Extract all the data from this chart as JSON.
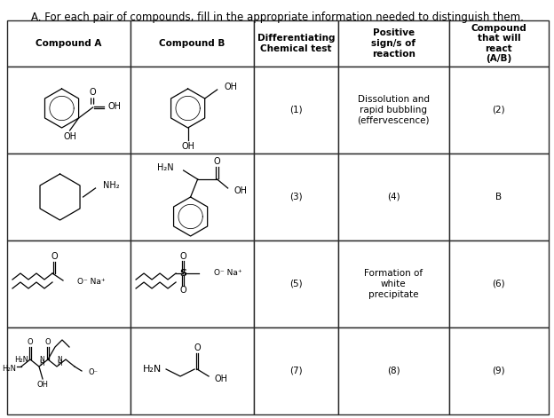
{
  "title": "A. For each pair of compounds, fill in the appropriate information needed to distinguish them.",
  "col_headers": [
    "Compound A",
    "Compound B",
    "Differentiating\nChemical test",
    "Positive\nsign/s of\nreaction",
    "Compound\nthat will\nreact\n(A/B)"
  ],
  "row_data": [
    {
      "diff_test": "(1)",
      "pos_signs": "Dissolution and\nrapid bubbling\n(effervescence)",
      "compound_react": "(2)"
    },
    {
      "diff_test": "(3)",
      "pos_signs": "(4)",
      "compound_react": "B"
    },
    {
      "diff_test": "(5)",
      "pos_signs": "Formation of\nwhite\nprecipitate",
      "compound_react": "(6)"
    },
    {
      "diff_test": "(7)",
      "pos_signs": "(8)",
      "compound_react": "(9)"
    }
  ],
  "title_fontsize": 8.5,
  "header_fontsize": 7.5,
  "cell_fontsize": 7.5,
  "struct_lw": 0.9
}
